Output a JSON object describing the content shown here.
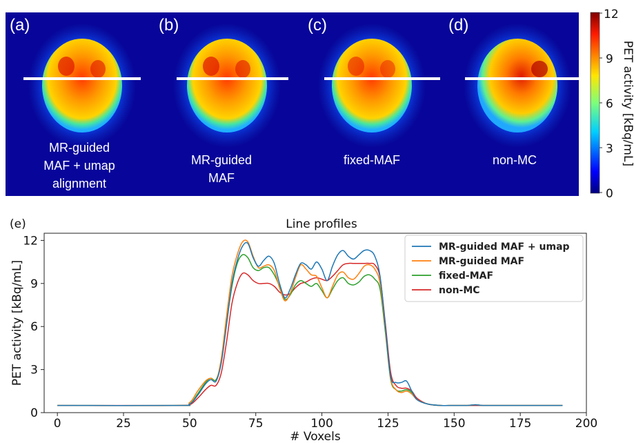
{
  "panels": [
    {
      "letter": "(a)",
      "caption_lines": [
        "MR-guided",
        "MAF + umap",
        "alignment"
      ]
    },
    {
      "letter": "(b)",
      "caption_lines": [
        "MR-guided",
        "MAF"
      ]
    },
    {
      "letter": "(c)",
      "caption_lines": [
        "fixed-MAF"
      ]
    },
    {
      "letter": "(d)",
      "caption_lines": [
        "non-MC"
      ]
    }
  ],
  "colorbar": {
    "label": "PET activity [kBq/mL]",
    "ticks": [
      "12",
      "9",
      "6",
      "3",
      "0"
    ],
    "colormap": "jet"
  },
  "profile_panel_letter": "(e)",
  "chart_data": {
    "type": "line",
    "title": "Line profiles",
    "xlabel": "# Voxels",
    "ylabel": "PET activity [kBq/mL]",
    "xlim": [
      -5,
      200
    ],
    "ylim": [
      0,
      12.5
    ],
    "xticks": [
      0,
      25,
      50,
      75,
      100,
      125,
      150,
      175,
      200
    ],
    "yticks": [
      0,
      3,
      6,
      9,
      12
    ],
    "grid": false,
    "legend_position": "top-right",
    "x": [
      0,
      45,
      50,
      53,
      56,
      58,
      60,
      62,
      64,
      66,
      68,
      70,
      72,
      74,
      76,
      78,
      80,
      82,
      84,
      86,
      88,
      90,
      92,
      94,
      96,
      98,
      100,
      102,
      104,
      106,
      108,
      110,
      112,
      114,
      116,
      118,
      120,
      122,
      124,
      126,
      128,
      130,
      132,
      134,
      136,
      140,
      145,
      150,
      155,
      158,
      161,
      165,
      175,
      191
    ],
    "series": [
      {
        "name": "MR-guided MAF + umap",
        "color": "#1f77b4",
        "values": [
          0.5,
          0.5,
          0.6,
          1.2,
          2.0,
          2.3,
          2.2,
          3.5,
          6.2,
          9.0,
          10.6,
          11.6,
          11.8,
          10.8,
          10.2,
          10.6,
          10.9,
          10.4,
          9.0,
          8.0,
          8.6,
          9.6,
          10.4,
          10.3,
          10.0,
          10.5,
          10.0,
          9.2,
          10.2,
          11.0,
          11.3,
          10.9,
          10.7,
          11.0,
          11.3,
          11.3,
          10.9,
          9.5,
          6.0,
          2.5,
          2.1,
          2.1,
          2.2,
          1.5,
          0.9,
          0.6,
          0.5,
          0.5,
          0.5,
          0.55,
          0.5,
          0.5,
          0.5,
          0.5
        ]
      },
      {
        "name": "MR-guided MAF",
        "color": "#ff7f0e",
        "values": [
          0.5,
          0.5,
          0.7,
          1.5,
          2.2,
          2.4,
          2.2,
          3.8,
          6.8,
          9.5,
          11.0,
          11.9,
          11.9,
          10.9,
          10.1,
          10.2,
          10.3,
          9.9,
          8.7,
          7.8,
          8.3,
          9.4,
          10.3,
          10.0,
          9.6,
          9.5,
          8.7,
          8.0,
          8.8,
          9.6,
          9.8,
          9.4,
          9.3,
          9.7,
          10.2,
          10.3,
          10.0,
          9.0,
          5.8,
          2.4,
          1.6,
          1.4,
          1.5,
          1.3,
          0.9,
          0.6,
          0.5,
          0.5,
          0.5,
          0.55,
          0.5,
          0.5,
          0.5,
          0.5
        ]
      },
      {
        "name": "fixed-MAF",
        "color": "#2ca02c",
        "values": [
          0.5,
          0.5,
          0.6,
          1.3,
          2.1,
          2.4,
          2.3,
          3.6,
          6.3,
          8.8,
          10.4,
          11.0,
          10.8,
          10.1,
          9.9,
          10.1,
          10.1,
          9.6,
          8.8,
          7.9,
          8.2,
          8.9,
          9.2,
          9.0,
          8.8,
          9.0,
          8.5,
          8.0,
          8.6,
          9.2,
          9.4,
          9.0,
          8.9,
          9.1,
          9.5,
          9.6,
          9.3,
          8.6,
          5.6,
          2.3,
          1.6,
          1.5,
          1.6,
          1.4,
          0.9,
          0.6,
          0.5,
          0.5,
          0.5,
          0.55,
          0.5,
          0.5,
          0.5,
          0.5
        ]
      },
      {
        "name": "non-MC",
        "color": "#d62728",
        "values": [
          0.5,
          0.5,
          0.55,
          1.0,
          1.6,
          1.9,
          1.9,
          2.8,
          5.0,
          7.6,
          9.0,
          9.7,
          9.6,
          9.2,
          9.0,
          9.0,
          9.0,
          8.8,
          8.4,
          8.2,
          8.3,
          8.7,
          9.0,
          9.1,
          9.3,
          9.4,
          9.3,
          9.2,
          9.5,
          9.9,
          10.3,
          10.4,
          10.4,
          10.4,
          10.4,
          10.4,
          10.3,
          9.4,
          6.2,
          2.8,
          1.9,
          1.7,
          1.7,
          1.5,
          1.0,
          0.6,
          0.5,
          0.5,
          0.5,
          0.5,
          0.5,
          0.5,
          0.5,
          0.5
        ]
      }
    ]
  }
}
